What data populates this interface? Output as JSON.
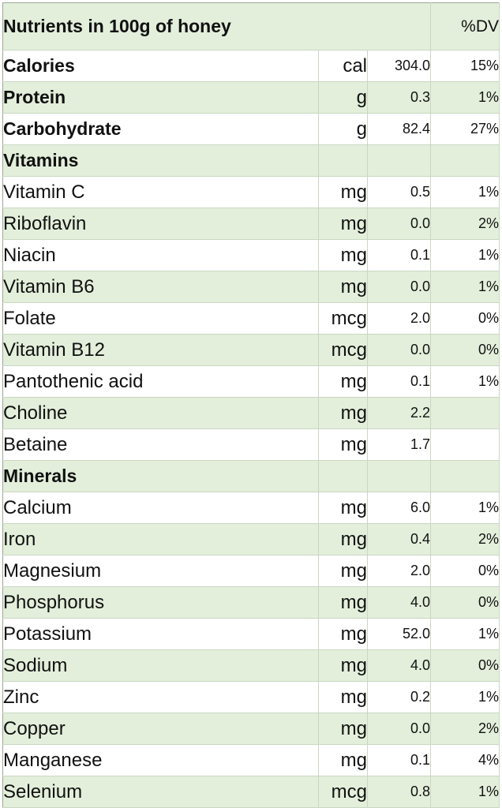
{
  "table": {
    "header": {
      "title": "Nutrients in 100g of honey",
      "dv_label": "%DV"
    },
    "rows": [
      {
        "kind": "main",
        "name": "Calories",
        "unit": "cal",
        "value": "304.0",
        "dv": "15%"
      },
      {
        "kind": "main",
        "name": "Protein",
        "unit": "g",
        "value": "0.3",
        "dv": "1%"
      },
      {
        "kind": "main",
        "name": "Carbohydrate",
        "unit": "g",
        "value": "82.4",
        "dv": "27%"
      },
      {
        "kind": "section",
        "name": "Vitamins",
        "unit": "",
        "value": "",
        "dv": ""
      },
      {
        "kind": "item",
        "name": "Vitamin C",
        "unit": "mg",
        "value": "0.5",
        "dv": "1%"
      },
      {
        "kind": "item",
        "name": "Riboflavin",
        "unit": "mg",
        "value": "0.0",
        "dv": "2%"
      },
      {
        "kind": "item",
        "name": "Niacin",
        "unit": "mg",
        "value": "0.1",
        "dv": "1%"
      },
      {
        "kind": "item",
        "name": "Vitamin B6",
        "unit": "mg",
        "value": "0.0",
        "dv": "1%"
      },
      {
        "kind": "item",
        "name": "Folate",
        "unit": "mcg",
        "value": "2.0",
        "dv": "0%"
      },
      {
        "kind": "item",
        "name": "Vitamin B12",
        "unit": "mcg",
        "value": "0.0",
        "dv": "0%"
      },
      {
        "kind": "item",
        "name": "Pantothenic acid",
        "unit": "mg",
        "value": "0.1",
        "dv": "1%"
      },
      {
        "kind": "item",
        "name": "Choline",
        "unit": "mg",
        "value": "2.2",
        "dv": ""
      },
      {
        "kind": "item",
        "name": "Betaine",
        "unit": "mg",
        "value": "1.7",
        "dv": ""
      },
      {
        "kind": "section",
        "name": "Minerals",
        "unit": "",
        "value": "",
        "dv": ""
      },
      {
        "kind": "item",
        "name": "Calcium",
        "unit": "mg",
        "value": "6.0",
        "dv": "1%"
      },
      {
        "kind": "item",
        "name": "Iron",
        "unit": "mg",
        "value": "0.4",
        "dv": "2%"
      },
      {
        "kind": "item",
        "name": "Magnesium",
        "unit": "mg",
        "value": "2.0",
        "dv": "0%"
      },
      {
        "kind": "item",
        "name": "Phosphorus",
        "unit": "mg",
        "value": "4.0",
        "dv": "0%"
      },
      {
        "kind": "item",
        "name": "Potassium",
        "unit": "mg",
        "value": "52.0",
        "dv": "1%"
      },
      {
        "kind": "item",
        "name": "Sodium",
        "unit": "mg",
        "value": "4.0",
        "dv": "0%"
      },
      {
        "kind": "item",
        "name": "Zinc",
        "unit": "mg",
        "value": "0.2",
        "dv": "1%"
      },
      {
        "kind": "item",
        "name": "Copper",
        "unit": "mg",
        "value": "0.0",
        "dv": "2%"
      },
      {
        "kind": "item",
        "name": "Manganese",
        "unit": "mg",
        "value": "0.1",
        "dv": "4%"
      },
      {
        "kind": "item",
        "name": "Selenium",
        "unit": "mcg",
        "value": "0.8",
        "dv": "1%"
      }
    ]
  },
  "colors": {
    "band": "#e3efdb",
    "plain": "#ffffff",
    "grid": "#c9d7c2"
  }
}
